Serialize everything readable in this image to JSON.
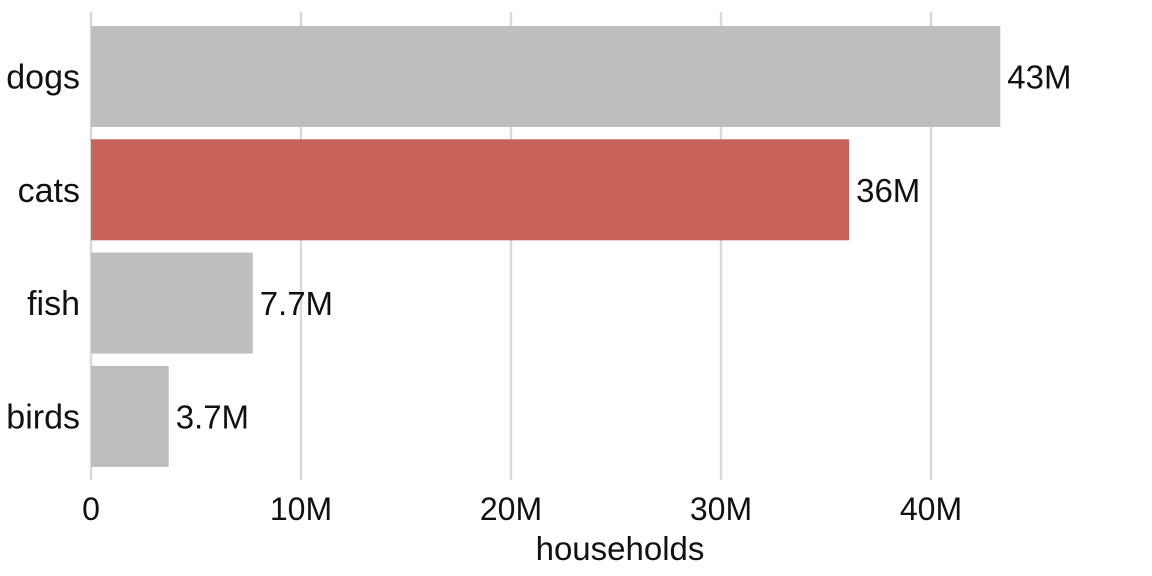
{
  "chart_data": {
    "type": "bar",
    "orientation": "horizontal",
    "categories": [
      "dogs",
      "cats",
      "fish",
      "birds"
    ],
    "values": [
      43.3,
      36.1,
      7.7,
      3.7
    ],
    "value_labels": [
      "43M",
      "36M",
      "7.7M",
      "3.7M"
    ],
    "highlight_category": "cats",
    "colors": {
      "default": "#bebebe",
      "highlight": "#c8635a",
      "grid": "#d9d9d9"
    },
    "xlabel": "households",
    "ylabel": "",
    "title": "",
    "xlim": [
      0,
      45
    ],
    "x_ticks": [
      0,
      10,
      20,
      30,
      40
    ],
    "x_tick_labels": [
      "0",
      "10M",
      "20M",
      "30M",
      "40M"
    ],
    "grid": "vertical"
  }
}
